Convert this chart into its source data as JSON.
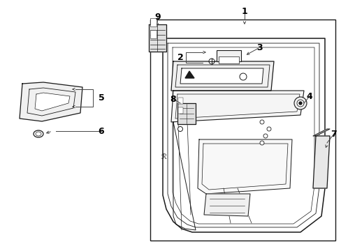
{
  "bg_color": "#ffffff",
  "line_color": "#1a1a1a",
  "text_color": "#000000",
  "fig_width": 4.89,
  "fig_height": 3.6,
  "dpi": 100,
  "parts": {
    "label_fs": 9,
    "callout_lw": 0.7,
    "draw_lw": 0.9
  }
}
